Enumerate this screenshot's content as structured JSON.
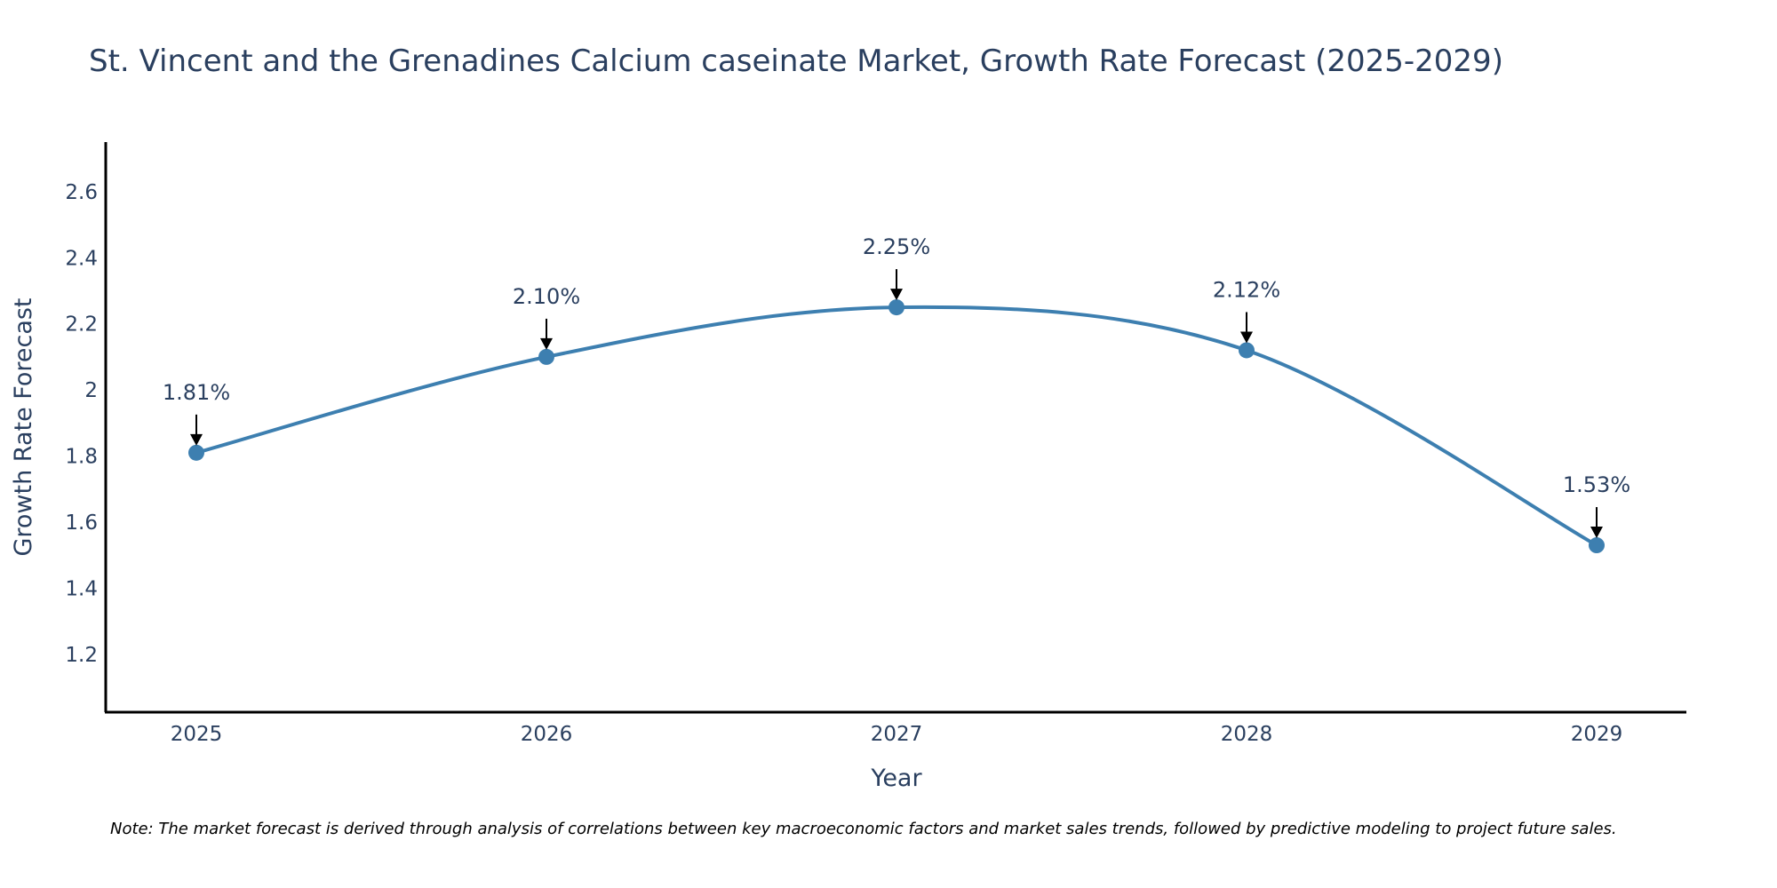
{
  "chart_data": {
    "type": "line",
    "title": "St. Vincent and the Grenadines Calcium caseinate Market, Growth Rate Forecast (2025-2029)",
    "xlabel": "Year",
    "ylabel": "Growth Rate Forecast",
    "categories": [
      "2025",
      "2026",
      "2027",
      "2028",
      "2029"
    ],
    "series": [
      {
        "name": "Growth Rate Forecast",
        "values": [
          1.81,
          2.1,
          2.25,
          2.12,
          1.53
        ],
        "labels": [
          "1.81%",
          "2.10%",
          "2.25%",
          "2.12%",
          "1.53%"
        ],
        "color": "#3d7fb0"
      }
    ],
    "yticks": [
      1.2,
      1.4,
      1.6,
      1.8,
      2.0,
      2.2,
      2.4,
      2.6
    ],
    "ytick_labels": [
      "1.2",
      "1.4",
      "1.6",
      "1.8",
      "2",
      "2.2",
      "2.4",
      "2.6"
    ],
    "ylim": [
      1.025,
      2.75
    ],
    "grid": false,
    "smoothing": "spline",
    "note": "Note: The market forecast is derived through analysis of correlations between key macroeconomic factors and market sales trends, followed by predictive modeling to project future sales."
  },
  "colors": {
    "line": "#3d7fb0",
    "marker": "#3d7fb0",
    "text": "#2a3f5f",
    "axis": "#000000",
    "arrow": "#000000"
  }
}
